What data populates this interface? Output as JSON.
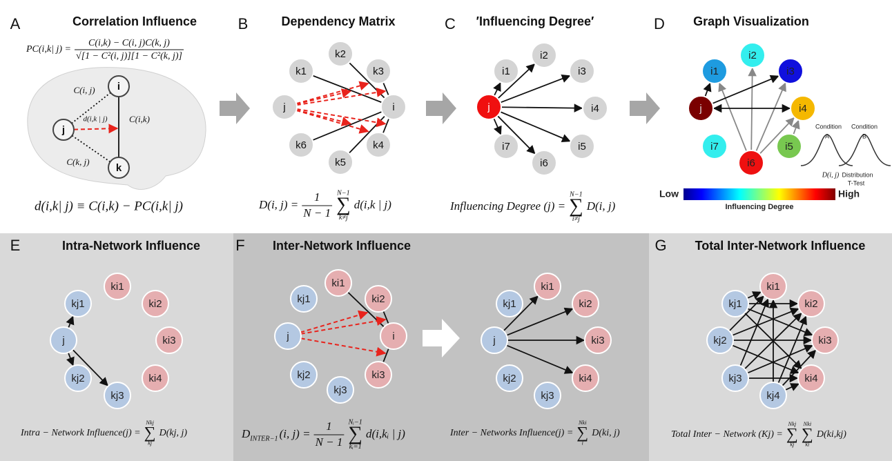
{
  "panels": [
    {
      "letter": "A",
      "title": "Correlation Influence",
      "formulas": [
        [
          "PC(i,k| j) =",
          {
            "num": "C(i,k) − C(i, j)C(k, j)",
            "den": "√[1 − C²(i, j)][1 − C²(k, j)]"
          }
        ],
        [
          "d(i,k| j) ≡ C(i,k) − PC(i,k| j)"
        ]
      ],
      "graphs": [
        {
          "nodes": [
            "i",
            "j",
            "k"
          ]
        }
      ],
      "edge_labels": [
        "C(i, j)",
        "C(i,k)",
        "d(i,k | j)",
        "C(k, j)"
      ]
    },
    {
      "letter": "B",
      "title": "Dependency Matrix",
      "formulas": [
        [
          "D(i, j) =",
          {
            "num": "1",
            "den": "N − 1"
          },
          {
            "sym": "∑",
            "top": "N−1",
            "bottom": "k≠j"
          },
          "d(i,k | j)"
        ]
      ],
      "graphs": [
        {
          "nodes": [
            "k1",
            "k2",
            "k3",
            "j",
            "i",
            "k4",
            "k5",
            "k6"
          ]
        }
      ]
    },
    {
      "letter": "C",
      "title": "′Influencing Degree′",
      "formulas": [
        [
          "Influencing Degree (j) =",
          {
            "sym": "∑",
            "top": "N−1",
            "bottom": "i≠j"
          },
          "D(i, j)"
        ]
      ],
      "graphs": [
        {
          "nodes": [
            "j",
            "i1",
            "i2",
            "i3",
            "i4",
            "i5",
            "i6",
            "i7"
          ]
        }
      ]
    },
    {
      "letter": "D",
      "title": "Graph Visualization",
      "graphs": [
        {
          "nodes": [
            "j",
            "i1",
            "i2",
            "i3",
            "i4",
            "i5",
            "i6",
            "i7"
          ]
        }
      ],
      "colorbar": {
        "low": "Low",
        "high": "High",
        "label": "Influencing Degree"
      },
      "inset": [
        "Condition",
        "A",
        "Condition",
        "B",
        "D(i, j)",
        "Distribution",
        "T-Test"
      ]
    },
    {
      "letter": "E",
      "title": "Intra-Network Influence",
      "formulas": [
        [
          "Intra − Network Influence(j) =",
          {
            "sym": "∑",
            "top": "Nkj",
            "bottom": "kj"
          },
          "D(kj, j)"
        ]
      ],
      "graphs": [
        {
          "nodes": [
            "kj1",
            "j",
            "kj2",
            "kj3",
            "ki1",
            "ki2",
            "ki3",
            "ki4"
          ]
        }
      ]
    },
    {
      "letter": "F",
      "title": "Inter-Network Influence",
      "formulas": [
        [
          {
            "base": "D",
            "sub": "INTER−1"
          },
          "(i, j) =",
          {
            "num": "1",
            "den": "N − 1"
          },
          {
            "sym": "∑",
            "top": "Nᵢ−1",
            "bottom": "kᵢ=1"
          },
          "d(i,kᵢ | j)"
        ],
        [
          "Inter − Networks Influence(j) =",
          {
            "sym": "∑",
            "top": "Nki",
            "bottom": "i"
          },
          "D(ki, j)"
        ]
      ],
      "graphs": [
        {
          "nodes": [
            "kj1",
            "ki1",
            "ki2",
            "j",
            "i",
            "kj2",
            "kj3",
            "ki3"
          ]
        },
        {
          "nodes": [
            "kj1",
            "ki1",
            "ki2",
            "j",
            "ki3",
            "kj2",
            "kj3",
            "ki4"
          ]
        }
      ]
    },
    {
      "letter": "G",
      "title": "Total Inter-Network Influence",
      "formulas": [
        [
          "Total  Inter − Network (Kj) =",
          {
            "sym": "∑",
            "top": "Nkj",
            "bottom": "kj"
          },
          {
            "sym": "∑",
            "top": "Nki",
            "bottom": "ki"
          },
          "D(ki,kj)"
        ]
      ],
      "graphs": [
        {
          "nodes": [
            "kj1",
            "ki1",
            "ki2",
            "kj2",
            "ki3",
            "kj3",
            "kj4",
            "ki4"
          ]
        }
      ]
    }
  ]
}
